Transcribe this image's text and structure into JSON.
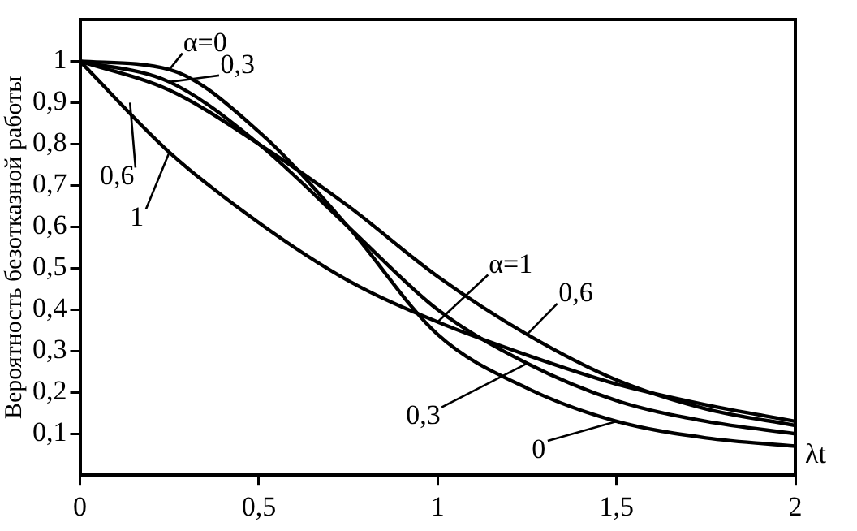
{
  "chart_data": {
    "type": "line",
    "xlabel": "λt",
    "ylabel": "Вероятность безотказной работы",
    "x": [
      0,
      0.25,
      0.5,
      0.75,
      1,
      1.25,
      1.5,
      1.75,
      2
    ],
    "series": [
      {
        "color": "#000000",
        "values": [
          1,
          0.98,
          0.83,
          0.6,
          0.34,
          0.21,
          0.13,
          0.09,
          0.07
        ]
      },
      {
        "color": "#000000",
        "values": [
          1,
          0.95,
          0.8,
          0.6,
          0.4,
          0.27,
          0.18,
          0.13,
          0.1
        ]
      },
      {
        "color": "#000000",
        "values": [
          1,
          0.93,
          0.8,
          0.65,
          0.48,
          0.34,
          0.23,
          0.16,
          0.12
        ]
      },
      {
        "color": "#000000",
        "values": [
          1,
          0.78,
          0.61,
          0.47,
          0.37,
          0.29,
          0.22,
          0.17,
          0.13
        ]
      }
    ],
    "xlim": [
      0,
      2
    ],
    "ylim": [
      0,
      1.1
    ],
    "xticks": [
      0,
      {
        "value": 0.5,
        "label": "0,5"
      },
      1,
      {
        "value": 1.5,
        "label": "1,5"
      },
      2
    ],
    "yticks": [
      {
        "value": 0.1,
        "label": "0,1"
      },
      {
        "value": 0.2,
        "label": "0,2"
      },
      {
        "value": 0.3,
        "label": "0,3"
      },
      {
        "value": 0.4,
        "label": "0,4"
      },
      {
        "value": 0.5,
        "label": "0,5"
      },
      {
        "value": 0.6,
        "label": "0,6"
      },
      {
        "value": 0.7,
        "label": "0,7"
      },
      {
        "value": 0.8,
        "label": "0,8"
      },
      {
        "value": 0.9,
        "label": "0,9"
      },
      1
    ],
    "annotations": [
      {
        "text": "α=0",
        "x": 0.25,
        "y": 0.98
      },
      {
        "text": "0,3",
        "x": 0.25,
        "y": 0.95
      },
      {
        "text": "0,6",
        "x": 0.14,
        "y": 0.9
      },
      {
        "text": "1",
        "x": 0.25,
        "y": 0.78
      },
      {
        "text": "α=1",
        "x": 1,
        "y": 0.37
      },
      {
        "text": "0,6",
        "x": 1.25,
        "y": 0.34
      },
      {
        "text": "0,3",
        "x": 1.25,
        "y": 0.27
      },
      {
        "text": "0",
        "x": 1.5,
        "y": 0.13
      }
    ],
    "grid": false,
    "legend": false,
    "marker": "none",
    "line_style": "solid"
  }
}
